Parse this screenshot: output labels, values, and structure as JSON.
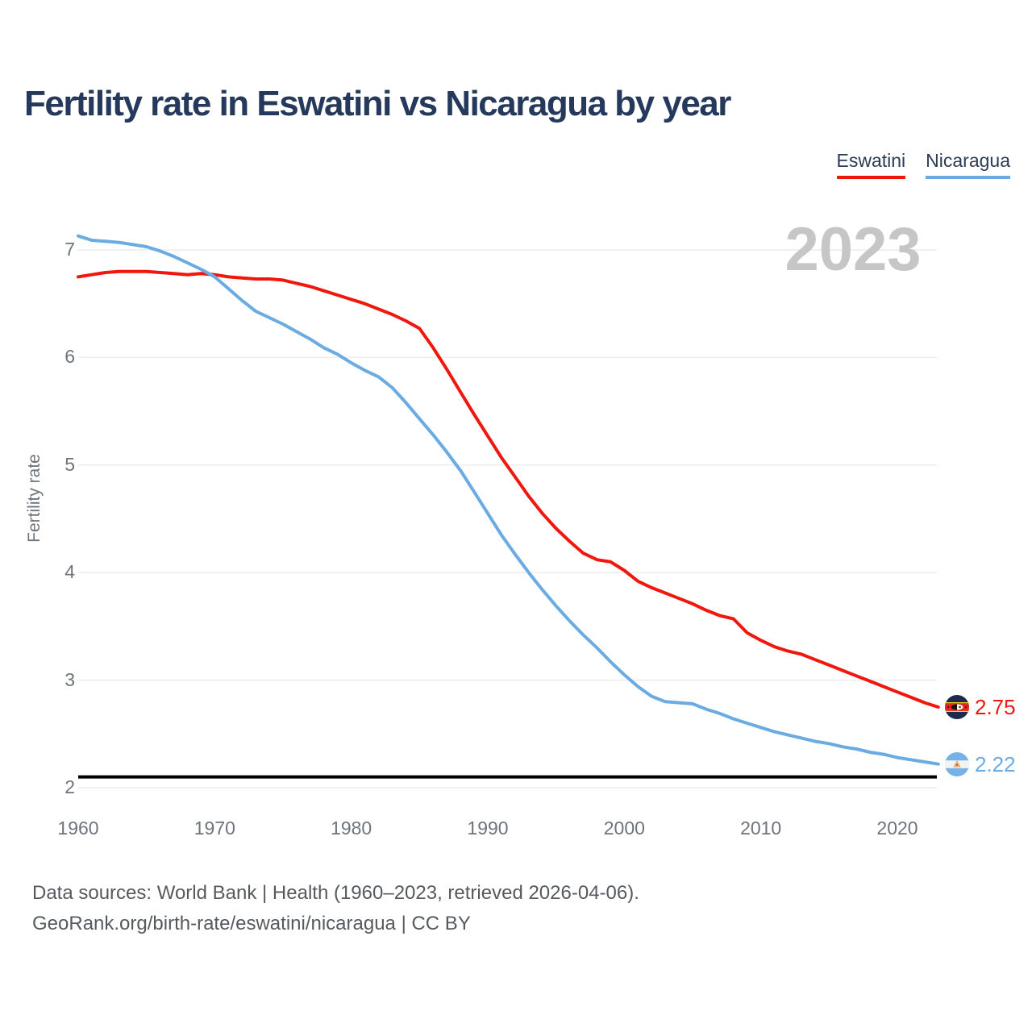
{
  "title": "Fertility rate in Eswatini vs Nicaragua by year",
  "legend": {
    "items": [
      {
        "label": "Eswatini",
        "color": "#ef170e"
      },
      {
        "label": "Nicaragua",
        "color": "#6aabe2"
      }
    ]
  },
  "watermark": "2023",
  "y_axis": {
    "label": "Fertility rate"
  },
  "end_labels": [
    {
      "series": "Eswatini",
      "value": "2.75",
      "flag": "eswatini-flag",
      "color": "#ef170e"
    },
    {
      "series": "Nicaragua",
      "value": "2.22",
      "flag": "nicaragua-flag",
      "color": "#6aabe2"
    }
  ],
  "footer": {
    "line1": "Data sources: World Bank | Health (1960–2023, retrieved 2026-04-06).",
    "line2": "GeoRank.org/birth-rate/eswatini/nicaragua | CC BY"
  },
  "chart_data": {
    "type": "line",
    "title": "Fertility rate in Eswatini vs Nicaragua by year",
    "xlabel": "",
    "ylabel": "Fertility rate",
    "ylim": [
      2,
      7.3
    ],
    "yticks": [
      7,
      6,
      5,
      4,
      3,
      2
    ],
    "xticks": [
      1960,
      1970,
      1980,
      1990,
      2000,
      2010,
      2020
    ],
    "grid": true,
    "legend_position": "top-right",
    "reference_line": 2.1,
    "x": [
      1960,
      1961,
      1962,
      1963,
      1964,
      1965,
      1966,
      1967,
      1968,
      1969,
      1970,
      1971,
      1972,
      1973,
      1974,
      1975,
      1976,
      1977,
      1978,
      1979,
      1980,
      1981,
      1982,
      1983,
      1984,
      1985,
      1986,
      1987,
      1988,
      1989,
      1990,
      1991,
      1992,
      1993,
      1994,
      1995,
      1996,
      1997,
      1998,
      1999,
      2000,
      2001,
      2002,
      2003,
      2004,
      2005,
      2006,
      2007,
      2008,
      2009,
      2010,
      2011,
      2012,
      2013,
      2014,
      2015,
      2016,
      2017,
      2018,
      2019,
      2020,
      2021,
      2022,
      2023
    ],
    "series": [
      {
        "name": "Eswatini",
        "color": "#ef170e",
        "values": [
          6.75,
          6.77,
          6.79,
          6.8,
          6.8,
          6.8,
          6.79,
          6.78,
          6.77,
          6.78,
          6.77,
          6.75,
          6.74,
          6.73,
          6.73,
          6.72,
          6.69,
          6.66,
          6.62,
          6.58,
          6.54,
          6.5,
          6.45,
          6.4,
          6.34,
          6.27,
          6.09,
          5.89,
          5.68,
          5.47,
          5.27,
          5.07,
          4.89,
          4.71,
          4.55,
          4.41,
          4.29,
          4.18,
          4.12,
          4.1,
          4.02,
          3.92,
          3.86,
          3.81,
          3.76,
          3.71,
          3.65,
          3.6,
          3.57,
          3.44,
          3.37,
          3.31,
          3.27,
          3.24,
          3.19,
          3.14,
          3.09,
          3.04,
          2.99,
          2.94,
          2.89,
          2.84,
          2.79,
          2.75
        ]
      },
      {
        "name": "Nicaragua",
        "color": "#6aabe2",
        "values": [
          7.13,
          7.09,
          7.08,
          7.07,
          7.05,
          7.03,
          6.99,
          6.94,
          6.88,
          6.82,
          6.75,
          6.64,
          6.53,
          6.43,
          6.37,
          6.31,
          6.24,
          6.17,
          6.09,
          6.03,
          5.95,
          5.88,
          5.82,
          5.72,
          5.58,
          5.43,
          5.28,
          5.12,
          4.95,
          4.75,
          4.55,
          4.35,
          4.17,
          4.0,
          3.84,
          3.69,
          3.55,
          3.42,
          3.3,
          3.17,
          3.05,
          2.94,
          2.85,
          2.8,
          2.79,
          2.78,
          2.73,
          2.69,
          2.64,
          2.6,
          2.56,
          2.52,
          2.49,
          2.46,
          2.43,
          2.41,
          2.38,
          2.36,
          2.33,
          2.31,
          2.28,
          2.26,
          2.24,
          2.22
        ]
      }
    ]
  }
}
